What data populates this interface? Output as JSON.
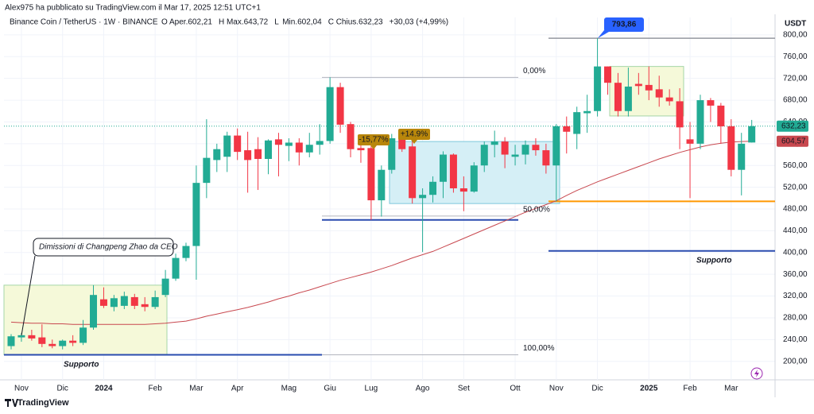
{
  "header": {
    "published": "Alex975 ha pubblicato su TradingView.com il Mar 17, 2025 12:51 UTC+1",
    "symbol": "Binance Coin / TetherUS · 1W · BINANCE",
    "ohlc": [
      {
        "key": "O",
        "text": "Aper.602,21"
      },
      {
        "key": "H",
        "text": "Max.643,72"
      },
      {
        "key": "L",
        "text": "Min.602,04"
      },
      {
        "key": "C",
        "text": "Chius.632,23"
      }
    ],
    "change": "+30,03 (+4,99%)"
  },
  "footer": "TradingView",
  "chart_data": {
    "type": "candlestick",
    "categories": [
      null,
      "Nov",
      null,
      null,
      null,
      "Dic",
      null,
      null,
      null,
      "2024",
      null,
      null,
      null,
      null,
      "Feb",
      null,
      null,
      null,
      "Mar",
      null,
      null,
      null,
      "Apr",
      null,
      null,
      null,
      null,
      "Mag",
      null,
      null,
      null,
      "Giu",
      null,
      null,
      null,
      "Lug",
      null,
      null,
      null,
      null,
      "Ago",
      null,
      null,
      null,
      "Set",
      null,
      null,
      null,
      null,
      "Ott",
      null,
      null,
      null,
      "Nov",
      null,
      null,
      null,
      "Dic",
      null,
      null,
      null,
      null,
      "2025",
      null,
      null,
      null,
      "Feb",
      null,
      null,
      null,
      "Mar",
      null,
      null
    ],
    "open": [
      228,
      244,
      248,
      244,
      232,
      228,
      238,
      234,
      262,
      314,
      300,
      302,
      318,
      305,
      300,
      322,
      352,
      390,
      412,
      528,
      570,
      576,
      615,
      588,
      590,
      572,
      608,
      596,
      602,
      584,
      598,
      605,
      704,
      636,
      592,
      592,
      496,
      552,
      610,
      595,
      500,
      506,
      530,
      580,
      518,
      512,
      560,
      598,
      604,
      576,
      580,
      598,
      588,
      560,
      632,
      618,
      656,
      660,
      742,
      712,
      660,
      710,
      708,
      700,
      685,
      678,
      608,
      600,
      680,
      670,
      632,
      552,
      602.21
    ],
    "high": [
      250,
      252,
      258,
      268,
      240,
      240,
      248,
      276,
      340,
      336,
      322,
      328,
      324,
      318,
      330,
      368,
      398,
      418,
      560,
      645,
      600,
      622,
      628,
      622,
      612,
      608,
      620,
      610,
      610,
      620,
      636,
      722,
      712,
      640,
      606,
      608,
      560,
      618,
      622,
      608,
      518,
      540,
      586,
      582,
      540,
      566,
      604,
      624,
      612,
      598,
      606,
      610,
      600,
      636,
      650,
      668,
      690,
      793.86,
      742,
      730,
      740,
      730,
      742,
      725,
      700,
      702,
      640,
      690,
      684,
      675,
      645,
      620,
      643.72
    ],
    "low": [
      222,
      236,
      238,
      226,
      224,
      222,
      228,
      230,
      258,
      298,
      292,
      296,
      296,
      292,
      296,
      318,
      348,
      384,
      350,
      500,
      548,
      548,
      570,
      510,
      515,
      544,
      540,
      568,
      560,
      575,
      580,
      600,
      620,
      575,
      565,
      460,
      466,
      545,
      585,
      490,
      401,
      492,
      500,
      510,
      476,
      510,
      548,
      575,
      555,
      560,
      562,
      578,
      545,
      494,
      582,
      590,
      620,
      650,
      690,
      650,
      650,
      690,
      680,
      668,
      670,
      590,
      500,
      590,
      640,
      600,
      540,
      505,
      602.04
    ],
    "close": [
      246,
      248,
      242,
      232,
      228,
      238,
      234,
      262,
      322,
      302,
      316,
      320,
      302,
      300,
      318,
      352,
      390,
      412,
      528,
      574,
      590,
      615,
      585,
      570,
      572,
      606,
      598,
      602,
      584,
      598,
      605,
      704,
      635,
      590,
      588,
      496,
      552,
      610,
      590,
      500,
      506,
      530,
      580,
      518,
      512,
      560,
      598,
      604,
      580,
      580,
      598,
      588,
      560,
      632,
      622,
      658,
      660,
      742,
      712,
      660,
      705,
      706,
      698,
      685,
      678,
      630,
      600,
      680,
      670,
      632,
      552,
      600,
      632.23
    ],
    "up_color": "#22ab94",
    "down_color": "#f23645",
    "moving_average": {
      "color": "#c8484f",
      "values": [
        272,
        271,
        270,
        270,
        269,
        269,
        268,
        268,
        268,
        268,
        268,
        268,
        268,
        268,
        269,
        270,
        272,
        274,
        278,
        283,
        287,
        291,
        295,
        299,
        304,
        309,
        315,
        320,
        326,
        331,
        337,
        343,
        349,
        354,
        359,
        364,
        370,
        376,
        383,
        390,
        396,
        402,
        410,
        418,
        426,
        434,
        442,
        450,
        458,
        466,
        474,
        481,
        488,
        495,
        505,
        514,
        522,
        530,
        537,
        544,
        551,
        558,
        565,
        572,
        578,
        584,
        589,
        594,
        598,
        601,
        603,
        604,
        604.57
      ]
    },
    "y_axis_label": "USDT",
    "ylim": [
      166,
      832
    ],
    "yticks": [
      {
        "value": 200,
        "label": "200,00"
      },
      {
        "value": 240,
        "label": "240,00"
      },
      {
        "value": 280,
        "label": "280,00"
      },
      {
        "value": 320,
        "label": "320,00"
      },
      {
        "value": 360,
        "label": "360,00"
      },
      {
        "value": 400,
        "label": "400,00"
      },
      {
        "value": 440,
        "label": "440,00"
      },
      {
        "value": 480,
        "label": "480,00"
      },
      {
        "value": 520,
        "label": "520,00"
      },
      {
        "value": 560,
        "label": "560,00"
      },
      {
        "value": 600,
        "label": "600,00"
      },
      {
        "value": 640,
        "label": "640,00"
      },
      {
        "value": 680,
        "label": "680,00"
      },
      {
        "value": 720,
        "label": "720,00"
      },
      {
        "value": 760,
        "label": "760,00"
      },
      {
        "value": 800,
        "label": "800,00"
      }
    ],
    "price_tags": [
      {
        "value": 632.23,
        "label": "632,23",
        "color": "#22ab94"
      },
      {
        "value": 604.57,
        "label": "604,57",
        "color": "#c8484f"
      }
    ],
    "high_tag": {
      "value": 793.86,
      "label": "793,86",
      "color": "#2962ff"
    },
    "zones": [
      {
        "from": 212,
        "to": 340,
        "color": "#f5f9d9"
      },
      {
        "from": 490,
        "to": 604,
        "color": "#d5eff6"
      },
      {
        "from": 651,
        "to": 742,
        "color": "#f5f9d9"
      }
    ],
    "levels": [
      {
        "value": 212,
        "color": "#2a4caf"
      },
      {
        "value": 460,
        "color": "#2a4caf"
      },
      {
        "value": 403,
        "color": "#2a4caf"
      },
      {
        "value": 494,
        "color": "#ff9800"
      }
    ],
    "fib_levels": [
      {
        "value": 722,
        "label": "0,00%"
      },
      {
        "value": 467,
        "label": "50,00%"
      },
      {
        "value": 212,
        "label": "100,00%"
      }
    ],
    "supports": [
      "Supporto",
      "Supporto"
    ],
    "note": "Dimissioni di Changpeng Zhao da CEO",
    "pct_labels": [
      {
        "value": -15.77,
        "label": "-15,77%"
      },
      {
        "value": 14.9,
        "label": "+14.9%"
      }
    ]
  }
}
